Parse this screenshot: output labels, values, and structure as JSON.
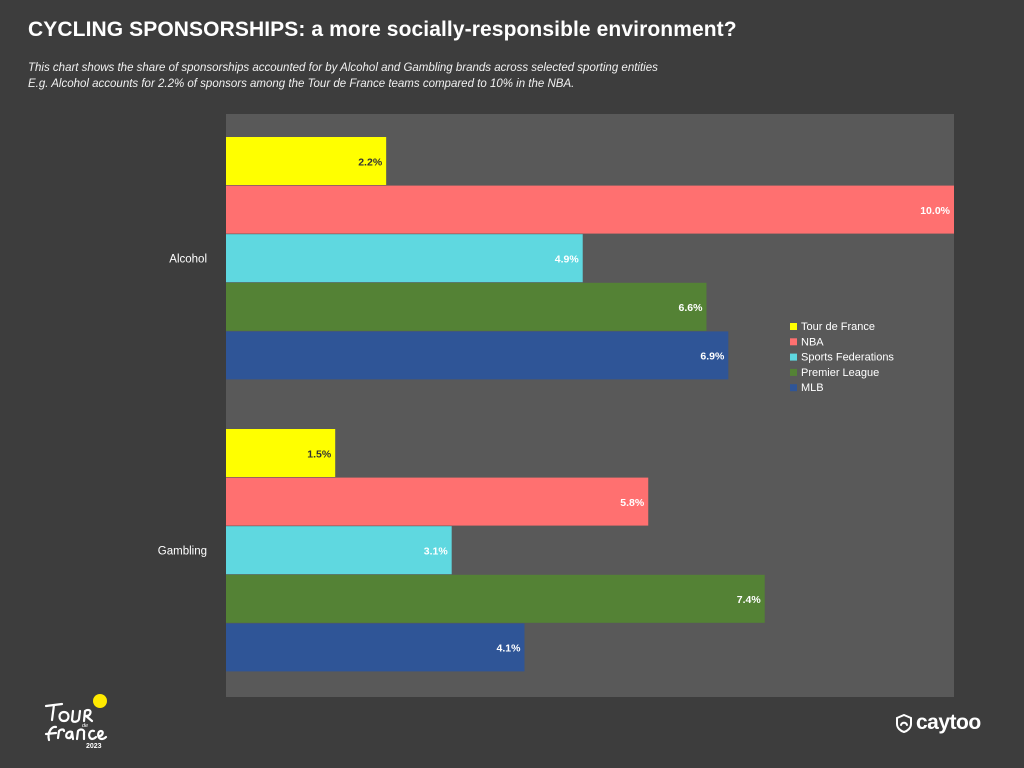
{
  "header": {
    "title": "CYCLING SPONSORSHIPS: a more socially-responsible environment?",
    "subtitle_line1": "This chart shows the share of sponsorships accounted for by Alcohol and Gambling brands across selected sporting entities",
    "subtitle_line2": "E.g. Alcohol accounts for 2.2% of sponsors among the Tour de France teams compared to 10% in the NBA."
  },
  "chart_data": {
    "type": "bar",
    "orientation": "horizontal",
    "categories": [
      "Alcohol",
      "Gambling"
    ],
    "series": [
      {
        "name": "Tour de France",
        "values": [
          2.2,
          1.5
        ],
        "color": "#ffff00",
        "label_color": "#333333"
      },
      {
        "name": "NBA",
        "values": [
          10.0,
          5.8
        ],
        "color": "#ff7070",
        "label_color": "#ffffff"
      },
      {
        "name": "Sports Federations",
        "values": [
          4.9,
          3.1
        ],
        "color": "#5fd8e0",
        "label_color": "#ffffff"
      },
      {
        "name": "Premier League",
        "values": [
          6.6,
          7.4
        ],
        "color": "#548235",
        "label_color": "#ffffff"
      },
      {
        "name": "MLB",
        "values": [
          6.9,
          4.1
        ],
        "color": "#2f5597",
        "label_color": "#ffffff"
      }
    ],
    "value_labels": [
      [
        "2.2%",
        "1.5%"
      ],
      [
        "10.0%",
        "5.8%"
      ],
      [
        "4.9%",
        "3.1%"
      ],
      [
        "6.6%",
        "7.4%"
      ],
      [
        "6.9%",
        "4.1%"
      ]
    ],
    "xlim": [
      0,
      10.0
    ],
    "grid": false,
    "legend_position": "right",
    "plot_background": "#595959"
  },
  "branding": {
    "event_logo_text": "Tour de France",
    "event_logo_year": "2023",
    "company_logo_text": "caytoo"
  }
}
